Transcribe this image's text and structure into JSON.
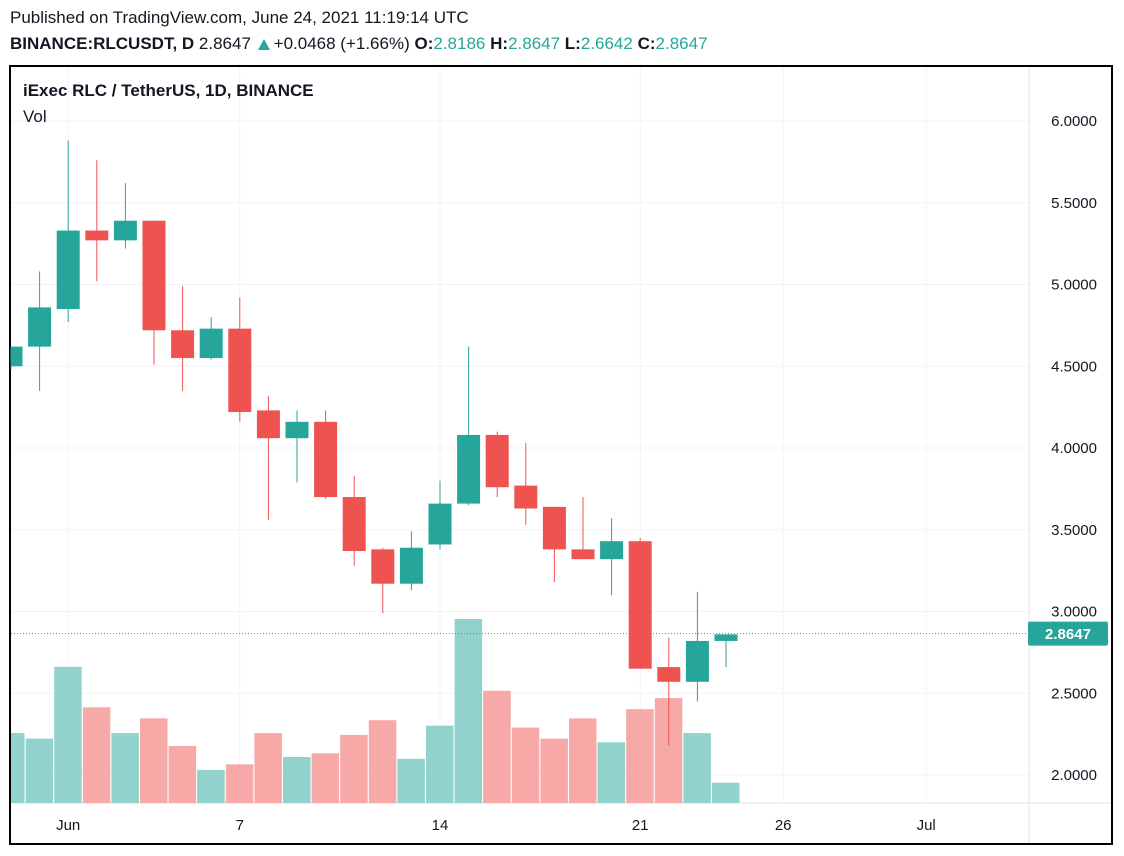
{
  "header": {
    "published": "Published on TradingView.com, June 24, 2021 11:19:14 UTC",
    "symbol": "BINANCE:RLCUSDT, D",
    "last": "2.8647",
    "change": "+0.0468 (+1.66%)",
    "o_label": "O:",
    "o_value": "2.8186",
    "h_label": "H:",
    "h_value": "2.8647",
    "l_label": "L:",
    "l_value": "2.6642",
    "c_label": "C:",
    "c_value": "2.8647"
  },
  "legend": {
    "title": "iExec RLC / TetherUS, 1D, BINANCE",
    "indicator": "Vol"
  },
  "colors": {
    "up": "#26a69a",
    "down": "#ef5350",
    "vol_up": "#92d2cc",
    "vol_down": "#f7a9a7",
    "grid": "#f0f3fa"
  },
  "chart_data": {
    "type": "candlestick",
    "title": "iExec RLC / TetherUS, 1D, BINANCE",
    "price_axis": {
      "ticks": [
        6.0,
        5.5,
        5.0,
        4.5,
        4.0,
        3.5,
        3.0,
        2.5,
        2.0
      ],
      "tick_labels": [
        "6.0000",
        "5.5000",
        "5.0000",
        "4.5000",
        "4.0000",
        "3.5000",
        "3.0000",
        "2.5000",
        "2.0000"
      ],
      "ylim": [
        1.83,
        6.18
      ]
    },
    "time_axis": {
      "labels": [
        "Jun",
        "7",
        "14",
        "21",
        "26",
        "Jul"
      ],
      "label_days": [
        1,
        7,
        14,
        21,
        26,
        31
      ]
    },
    "last_price_label": "2.8647",
    "last_price": 2.8647,
    "candles": [
      {
        "day": 30,
        "o": 4.5,
        "h": 4.62,
        "l": 4.48,
        "c": 4.62
      },
      {
        "day": 31,
        "o": 4.62,
        "h": 5.08,
        "l": 4.35,
        "c": 4.86
      },
      {
        "day": 1,
        "o": 4.85,
        "h": 5.88,
        "l": 4.77,
        "c": 5.33
      },
      {
        "day": 2,
        "o": 5.33,
        "h": 5.76,
        "l": 5.02,
        "c": 5.27
      },
      {
        "day": 3,
        "o": 5.27,
        "h": 5.62,
        "l": 5.22,
        "c": 5.39
      },
      {
        "day": 4,
        "o": 5.39,
        "h": 5.39,
        "l": 4.51,
        "c": 4.72
      },
      {
        "day": 5,
        "o": 4.72,
        "h": 4.99,
        "l": 4.35,
        "c": 4.55
      },
      {
        "day": 6,
        "o": 4.55,
        "h": 4.8,
        "l": 4.54,
        "c": 4.73
      },
      {
        "day": 7,
        "o": 4.73,
        "h": 4.92,
        "l": 4.16,
        "c": 4.22
      },
      {
        "day": 8,
        "o": 4.23,
        "h": 4.32,
        "l": 3.56,
        "c": 4.06
      },
      {
        "day": 9,
        "o": 4.06,
        "h": 4.23,
        "l": 3.79,
        "c": 4.16
      },
      {
        "day": 10,
        "o": 4.16,
        "h": 4.23,
        "l": 3.69,
        "c": 3.7
      },
      {
        "day": 11,
        "o": 3.7,
        "h": 3.83,
        "l": 3.28,
        "c": 3.37
      },
      {
        "day": 12,
        "o": 3.38,
        "h": 3.39,
        "l": 2.99,
        "c": 3.17
      },
      {
        "day": 13,
        "o": 3.17,
        "h": 3.49,
        "l": 3.13,
        "c": 3.39
      },
      {
        "day": 14,
        "o": 3.41,
        "h": 3.8,
        "l": 3.38,
        "c": 3.66
      },
      {
        "day": 15,
        "o": 3.66,
        "h": 4.62,
        "l": 3.65,
        "c": 4.08
      },
      {
        "day": 16,
        "o": 4.08,
        "h": 4.1,
        "l": 3.7,
        "c": 3.76
      },
      {
        "day": 17,
        "o": 3.77,
        "h": 4.03,
        "l": 3.53,
        "c": 3.63
      },
      {
        "day": 18,
        "o": 3.64,
        "h": 3.63,
        "l": 3.18,
        "c": 3.38
      },
      {
        "day": 19,
        "o": 3.38,
        "h": 3.7,
        "l": 3.32,
        "c": 3.32
      },
      {
        "day": 20,
        "o": 3.32,
        "h": 3.57,
        "l": 3.1,
        "c": 3.43
      },
      {
        "day": 21,
        "o": 3.43,
        "h": 3.45,
        "l": 2.65,
        "c": 2.65
      },
      {
        "day": 22,
        "o": 2.66,
        "h": 2.84,
        "l": 2.18,
        "c": 2.57
      },
      {
        "day": 23,
        "o": 2.57,
        "h": 3.12,
        "l": 2.45,
        "c": 2.82
      },
      {
        "day": 24,
        "o": 2.82,
        "h": 2.86,
        "l": 2.66,
        "c": 2.86
      }
    ],
    "volume": [
      {
        "day": 30,
        "v": 0.38,
        "dir": "up"
      },
      {
        "day": 31,
        "v": 0.35,
        "dir": "up"
      },
      {
        "day": 1,
        "v": 0.74,
        "dir": "up"
      },
      {
        "day": 2,
        "v": 0.52,
        "dir": "down"
      },
      {
        "day": 3,
        "v": 0.38,
        "dir": "up"
      },
      {
        "day": 4,
        "v": 0.46,
        "dir": "down"
      },
      {
        "day": 5,
        "v": 0.31,
        "dir": "down"
      },
      {
        "day": 6,
        "v": 0.18,
        "dir": "up"
      },
      {
        "day": 7,
        "v": 0.21,
        "dir": "down"
      },
      {
        "day": 8,
        "v": 0.38,
        "dir": "down"
      },
      {
        "day": 9,
        "v": 0.25,
        "dir": "up"
      },
      {
        "day": 10,
        "v": 0.27,
        "dir": "down"
      },
      {
        "day": 11,
        "v": 0.37,
        "dir": "down"
      },
      {
        "day": 12,
        "v": 0.45,
        "dir": "down"
      },
      {
        "day": 13,
        "v": 0.24,
        "dir": "up"
      },
      {
        "day": 14,
        "v": 0.42,
        "dir": "up"
      },
      {
        "day": 15,
        "v": 1.0,
        "dir": "up"
      },
      {
        "day": 16,
        "v": 0.61,
        "dir": "down"
      },
      {
        "day": 17,
        "v": 0.41,
        "dir": "down"
      },
      {
        "day": 18,
        "v": 0.35,
        "dir": "down"
      },
      {
        "day": 19,
        "v": 0.46,
        "dir": "down"
      },
      {
        "day": 20,
        "v": 0.33,
        "dir": "up"
      },
      {
        "day": 21,
        "v": 0.51,
        "dir": "down"
      },
      {
        "day": 22,
        "v": 0.57,
        "dir": "down"
      },
      {
        "day": 23,
        "v": 0.38,
        "dir": "up"
      },
      {
        "day": 24,
        "v": 0.11,
        "dir": "up"
      }
    ]
  }
}
